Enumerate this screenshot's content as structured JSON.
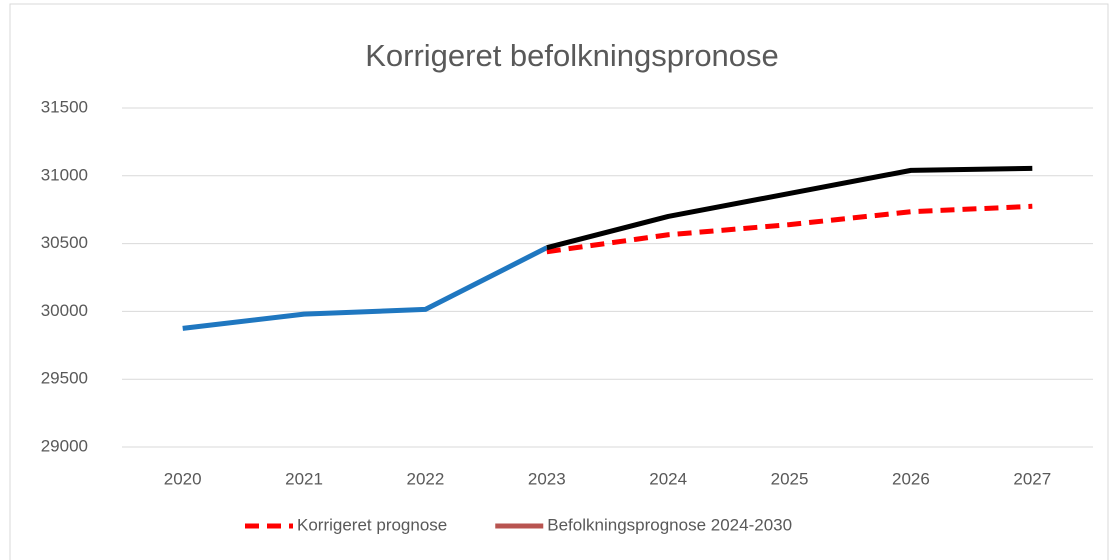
{
  "chart_data": {
    "type": "line",
    "title": "Korrigeret befolkningspronose",
    "categories": [
      "2020",
      "2021",
      "2022",
      "2023",
      "2024",
      "2025",
      "2026",
      "2027"
    ],
    "series": [
      {
        "color": "#1f77c0",
        "dash": false,
        "values": [
          29875,
          29980,
          30015,
          30470,
          null,
          null,
          null,
          null
        ]
      },
      {
        "name": "Korrigeret prognose",
        "color": "#ff0000",
        "dash": true,
        "values": [
          null,
          null,
          null,
          30440,
          30565,
          30640,
          30735,
          30775
        ]
      },
      {
        "name": "Befolkningsprognose 2024-2030",
        "color": "#000000",
        "legend_color": "#b85450",
        "dash": false,
        "values": [
          null,
          null,
          null,
          30470,
          30700,
          30870,
          31040,
          31055
        ]
      }
    ],
    "ylim": [
      29000,
      31500
    ],
    "yticks": [
      29000,
      29500,
      30000,
      30500,
      31000,
      31500
    ],
    "grid": true,
    "legend": "bottom"
  }
}
